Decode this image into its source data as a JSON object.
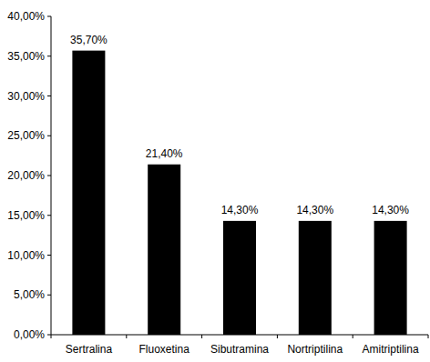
{
  "chart_data": {
    "type": "bar",
    "categories": [
      "Sertralina",
      "Fluoxetina",
      "Sibutramina",
      "Nortriptilina",
      "Amitriptilina"
    ],
    "values": [
      35.7,
      21.4,
      14.3,
      14.3,
      14.3
    ],
    "value_labels": [
      "35,70%",
      "21,40%",
      "14,30%",
      "14,30%",
      "14,30%"
    ],
    "data_labels": true,
    "color": "#000000",
    "grid": false,
    "ylim": [
      0,
      40
    ],
    "yticks": [
      {
        "value": 0,
        "label": "0,00%"
      },
      {
        "value": 5,
        "label": "5,00%"
      },
      {
        "value": 10,
        "label": "10,00%"
      },
      {
        "value": 15,
        "label": "15,00%"
      },
      {
        "value": 20,
        "label": "20,00%"
      },
      {
        "value": 25,
        "label": "25,00%"
      },
      {
        "value": 30,
        "label": "30,00%"
      },
      {
        "value": 35,
        "label": "35,00%"
      },
      {
        "value": 40,
        "label": "40,00%"
      }
    ]
  }
}
